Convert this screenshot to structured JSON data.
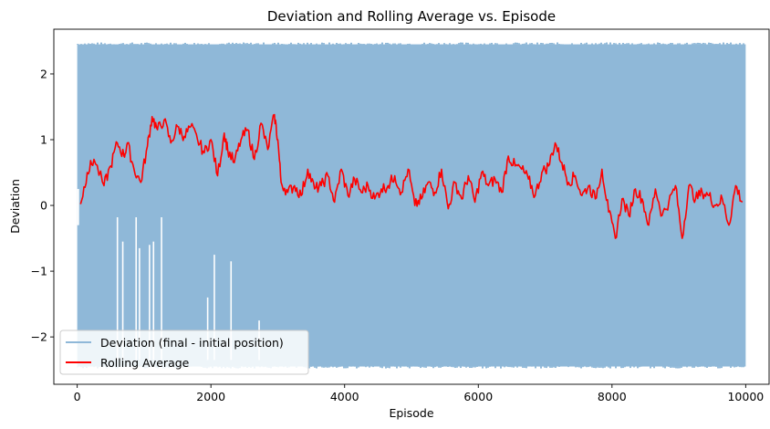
{
  "chart_data": {
    "type": "line",
    "title": "Deviation and Rolling Average vs. Episode",
    "xlabel": "Episode",
    "ylabel": "Deviation",
    "xlim": [
      -350,
      10350
    ],
    "ylim": [
      -2.72,
      2.68
    ],
    "xticks": [
      0,
      2000,
      4000,
      6000,
      8000,
      10000
    ],
    "yticks": [
      -2,
      -1,
      0,
      1,
      2
    ],
    "xtick_labels": [
      "0",
      "2000",
      "4000",
      "6000",
      "8000",
      "10000"
    ],
    "ytick_labels": [
      "−2",
      "−1",
      "0",
      "1",
      "2"
    ],
    "grid": false,
    "legend_position": "lower-left",
    "series": [
      {
        "name": "Deviation (final - initial position)",
        "color": "#8fb8d8",
        "style": "dense-oscillation",
        "x_range": [
          0,
          10000
        ],
        "y_min": -2.45,
        "y_max": 2.45,
        "gaps": [
          {
            "x": 600,
            "top": -0.18
          },
          {
            "x": 680,
            "top": -0.55
          },
          {
            "x": 880,
            "top": -0.18
          },
          {
            "x": 930,
            "top": -0.65
          },
          {
            "x": 1080,
            "top": -0.6
          },
          {
            "x": 1140,
            "top": -0.55
          },
          {
            "x": 1260,
            "top": -0.18
          },
          {
            "x": 1950,
            "top": -1.4
          },
          {
            "x": 2050,
            "top": -0.75
          },
          {
            "x": 2300,
            "top": -0.85
          },
          {
            "x": 2720,
            "top": -1.75
          }
        ]
      },
      {
        "name": "Rolling Average",
        "color": "#ff0000",
        "x": [
          50,
          150,
          250,
          400,
          500,
          600,
          700,
          750,
          850,
          950,
          1050,
          1120,
          1200,
          1300,
          1400,
          1500,
          1600,
          1700,
          1800,
          1900,
          2000,
          2100,
          2200,
          2250,
          2350,
          2450,
          2550,
          2650,
          2750,
          2850,
          2950,
          3000,
          3050,
          3150,
          3250,
          3350,
          3450,
          3550,
          3650,
          3750,
          3850,
          3950,
          4050,
          4150,
          4250,
          4350,
          4450,
          4550,
          4650,
          4750,
          4850,
          4950,
          5050,
          5150,
          5250,
          5350,
          5450,
          5550,
          5650,
          5750,
          5850,
          5950,
          6050,
          6150,
          6250,
          6350,
          6450,
          6550,
          6650,
          6750,
          6850,
          6950,
          7050,
          7150,
          7250,
          7350,
          7450,
          7550,
          7650,
          7750,
          7850,
          7950,
          8050,
          8150,
          8250,
          8350,
          8450,
          8550,
          8650,
          8750,
          8850,
          8950,
          9050,
          9150,
          9250,
          9350,
          9450,
          9550,
          9650,
          9750,
          9850,
          9950
        ],
        "y": [
          0.02,
          0.5,
          0.7,
          0.3,
          0.6,
          0.95,
          0.75,
          0.95,
          0.55,
          0.35,
          0.9,
          1.35,
          1.15,
          1.3,
          0.95,
          1.2,
          1.05,
          1.2,
          1.0,
          0.8,
          1.0,
          0.45,
          1.1,
          0.85,
          0.65,
          1.0,
          1.15,
          0.7,
          1.25,
          0.85,
          1.38,
          1.0,
          0.35,
          0.2,
          0.3,
          0.15,
          0.55,
          0.25,
          0.3,
          0.45,
          0.05,
          0.55,
          0.15,
          0.4,
          0.2,
          0.3,
          0.1,
          0.25,
          0.3,
          0.45,
          0.2,
          0.55,
          0.0,
          0.1,
          0.35,
          0.2,
          0.55,
          -0.05,
          0.35,
          0.1,
          0.45,
          0.05,
          0.5,
          0.3,
          0.4,
          0.2,
          0.75,
          0.6,
          0.55,
          0.4,
          0.15,
          0.5,
          0.6,
          0.95,
          0.65,
          0.35,
          0.45,
          0.15,
          0.3,
          0.1,
          0.55,
          -0.1,
          -0.5,
          0.1,
          -0.15,
          0.25,
          0.1,
          -0.3,
          0.25,
          -0.15,
          0.05,
          0.3,
          -0.5,
          0.3,
          0.1,
          0.2,
          0.15,
          0.0,
          0.1,
          -0.3,
          0.3,
          0.05
        ]
      }
    ]
  }
}
